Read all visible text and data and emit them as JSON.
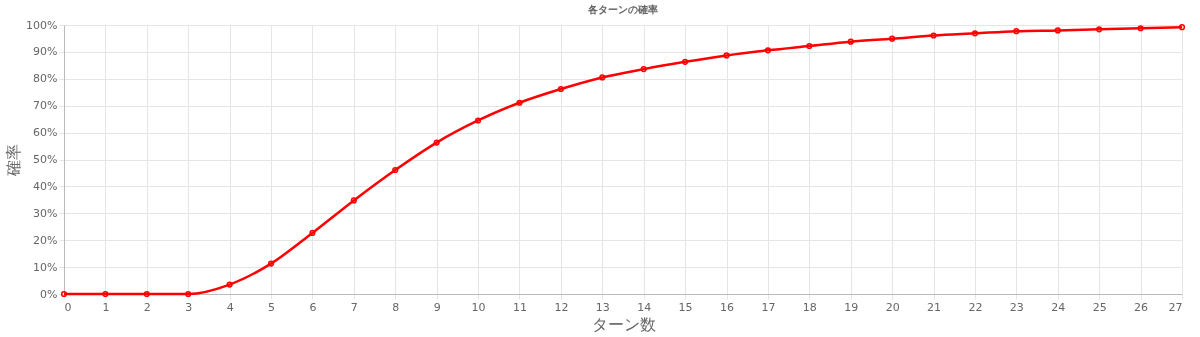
{
  "chart_data": {
    "type": "line",
    "title": "各ターンの確率",
    "xlabel": "ターン数",
    "ylabel": "確率",
    "x": [
      0,
      1,
      2,
      3,
      4,
      5,
      6,
      7,
      8,
      9,
      10,
      11,
      12,
      13,
      14,
      15,
      16,
      17,
      18,
      19,
      20,
      21,
      22,
      23,
      24,
      25,
      26,
      27
    ],
    "series": [
      {
        "color": "#ff0000",
        "values": [
          0,
          0,
          0,
          0,
          3.5,
          11.3,
          22.7,
          34.8,
          46.1,
          56.3,
          64.5,
          71.1,
          76.2,
          80.5,
          83.6,
          86.3,
          88.7,
          90.6,
          92.2,
          93.8,
          94.9,
          96.1,
          96.9,
          97.7,
          98.0,
          98.4,
          98.8,
          99.2
        ]
      }
    ],
    "xlim": [
      0,
      27
    ],
    "xticks": [
      0,
      1,
      2,
      3,
      4,
      5,
      6,
      7,
      8,
      9,
      10,
      11,
      12,
      13,
      14,
      15,
      16,
      17,
      18,
      19,
      20,
      21,
      22,
      23,
      24,
      25,
      26,
      27
    ],
    "ylim": [
      0,
      100
    ],
    "yticks": [
      {
        "value": 0,
        "label": "0%"
      },
      {
        "value": 10,
        "label": "10%"
      },
      {
        "value": 20,
        "label": "20%"
      },
      {
        "value": 30,
        "label": "30%"
      },
      {
        "value": 40,
        "label": "40%"
      },
      {
        "value": 50,
        "label": "50%"
      },
      {
        "value": 60,
        "label": "60%"
      },
      {
        "value": 70,
        "label": "70%"
      },
      {
        "value": 80,
        "label": "80%"
      },
      {
        "value": 90,
        "label": "90%"
      },
      {
        "value": 100,
        "label": "100%"
      }
    ],
    "grid": true,
    "marker": "circle",
    "line_style": "solid"
  }
}
